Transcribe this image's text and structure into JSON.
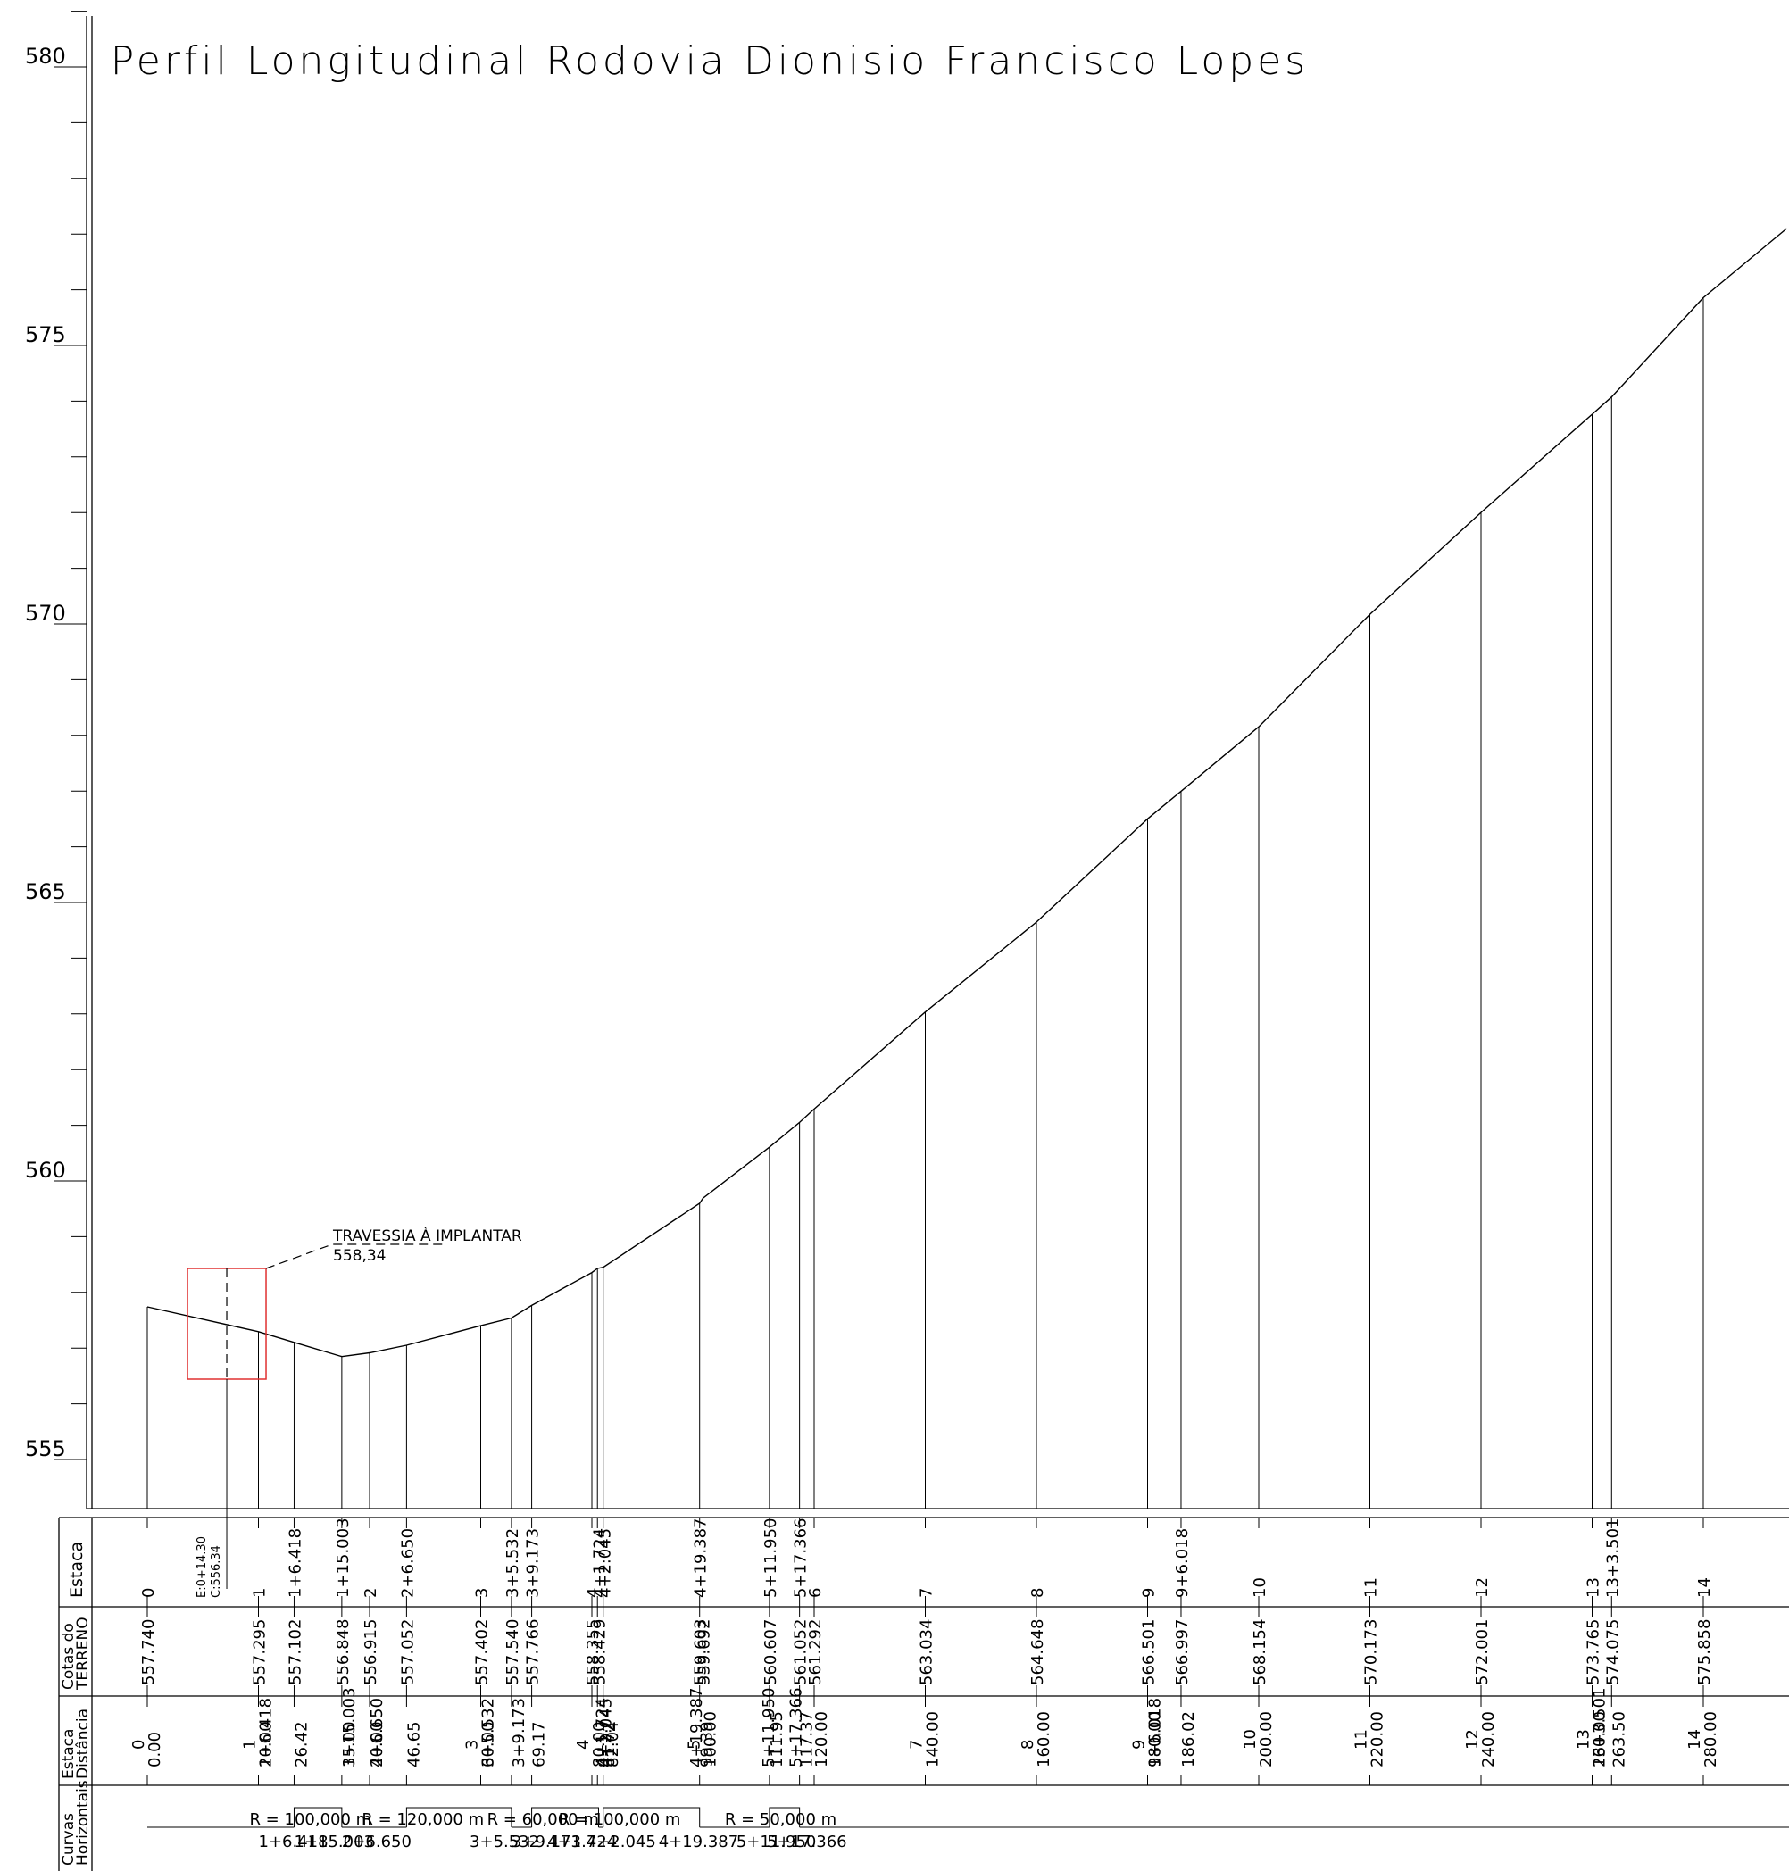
{
  "title": "Perfil  Longitudinal  Rodovia  Dionisio  Francisco  Lopes",
  "colors": {
    "ink": "#000000",
    "highlight": "#e03030",
    "background": "#ffffff"
  },
  "chart_data": {
    "type": "line",
    "ylim": [
      554.3,
      581.1
    ],
    "xlim": [
      -8,
      293
    ],
    "yticks": [
      "580",
      "575",
      "570",
      "565",
      "560",
      "555"
    ],
    "terrain": {
      "x": [
        0.0,
        20.0,
        26.42,
        35.0,
        40.0,
        46.65,
        60.0,
        65.53,
        69.17,
        80.0,
        81.0,
        82.04,
        99.39,
        100.0,
        111.95,
        117.37,
        120.0,
        140.0,
        160.0,
        180.0,
        186.02,
        200.0,
        220.0,
        240.0,
        260.0,
        263.5,
        280.0,
        295.0
      ],
      "y": [
        557.74,
        557.295,
        557.102,
        556.848,
        556.915,
        557.052,
        557.402,
        557.54,
        557.766,
        558.355,
        558.429,
        558.45,
        559.6,
        559.692,
        560.607,
        561.052,
        561.292,
        563.034,
        564.648,
        566.501,
        566.997,
        568.154,
        570.173,
        572.001,
        573.765,
        574.075,
        575.858,
        577.1
      ]
    },
    "annotation": {
      "label": "TRAVESSIA  À  IMPLANTAR",
      "value": "558,34",
      "stake": "E:0+14.30",
      "elevation": "C:556.34"
    }
  },
  "table": {
    "row_labels": {
      "estaca": "Estaca",
      "cotas": [
        "Cotas do",
        "TERRENO"
      ],
      "dist": [
        "Estaca",
        "Distância"
      ],
      "curvas": [
        "Curvas",
        "Horizontais"
      ]
    },
    "estaca_labels": [
      {
        "x": 0,
        "t": "0"
      },
      {
        "x": 20,
        "t": "1"
      },
      {
        "x": 26.42,
        "t": "1+6.418"
      },
      {
        "x": 35,
        "t": "1+15.003"
      },
      {
        "x": 40,
        "t": "2"
      },
      {
        "x": 46.65,
        "t": "2+6.650"
      },
      {
        "x": 60,
        "t": "3"
      },
      {
        "x": 65.53,
        "t": "3+5.532"
      },
      {
        "x": 69.17,
        "t": "3+9.173"
      },
      {
        "x": 80,
        "t": "4"
      },
      {
        "x": 81.2,
        "t": "4+1.724"
      },
      {
        "x": 82.2,
        "t": "4+2.045"
      },
      {
        "x": 99.39,
        "t": "4+19.387"
      },
      {
        "x": 111.95,
        "t": "5+11.950"
      },
      {
        "x": 117.37,
        "t": "5+17.366"
      },
      {
        "x": 120,
        "t": "6"
      },
      {
        "x": 140,
        "t": "7"
      },
      {
        "x": 160,
        "t": "8"
      },
      {
        "x": 180,
        "t": "9"
      },
      {
        "x": 186.02,
        "t": "9+6.018"
      },
      {
        "x": 200,
        "t": "10"
      },
      {
        "x": 220,
        "t": "11"
      },
      {
        "x": 240,
        "t": "12"
      },
      {
        "x": 260,
        "t": "13"
      },
      {
        "x": 263.5,
        "t": "13+3.501"
      },
      {
        "x": 280,
        "t": "14"
      }
    ],
    "cota_labels": [
      {
        "x": 0,
        "t": "557.740"
      },
      {
        "x": 20,
        "t": "557.295"
      },
      {
        "x": 26.42,
        "t": "557.102"
      },
      {
        "x": 35,
        "t": "556.848"
      },
      {
        "x": 40,
        "t": "556.915"
      },
      {
        "x": 46.65,
        "t": "557.052"
      },
      {
        "x": 60,
        "t": "557.402"
      },
      {
        "x": 65.53,
        "t": "557.540"
      },
      {
        "x": 69.17,
        "t": "557.766"
      },
      {
        "x": 80,
        "t": "558.355"
      },
      {
        "x": 81.2,
        "t": "558.429"
      },
      {
        "x": 99.39,
        "t": "559.603"
      },
      {
        "x": 100,
        "t": "559.692"
      },
      {
        "x": 111.95,
        "t": "560.607"
      },
      {
        "x": 117.37,
        "t": "561.052"
      },
      {
        "x": 120,
        "t": "561.292"
      },
      {
        "x": 140,
        "t": "563.034"
      },
      {
        "x": 160,
        "t": "564.648"
      },
      {
        "x": 180,
        "t": "566.501"
      },
      {
        "x": 186.02,
        "t": "566.997"
      },
      {
        "x": 200,
        "t": "568.154"
      },
      {
        "x": 220,
        "t": "570.173"
      },
      {
        "x": 240,
        "t": "572.001"
      },
      {
        "x": 260,
        "t": "573.765"
      },
      {
        "x": 263.5,
        "t": "574.075"
      },
      {
        "x": 280,
        "t": "575.858"
      }
    ],
    "dist_labels": [
      {
        "x": 0,
        "a": "0",
        "b": "0.00"
      },
      {
        "x": 20,
        "a": "1",
        "b": "20.00"
      },
      {
        "x": 20,
        "a": "",
        "b": "1+6.418"
      },
      {
        "x": 26.42,
        "a": "",
        "b": "26.42"
      },
      {
        "x": 35,
        "a": "",
        "b": "1+15.003"
      },
      {
        "x": 35,
        "a": "",
        "b": "35.00"
      },
      {
        "x": 40,
        "a": "",
        "b": "40.00"
      },
      {
        "x": 40,
        "a": "",
        "b": "2+6.650"
      },
      {
        "x": 46.65,
        "a": "",
        "b": "46.65"
      },
      {
        "x": 60,
        "a": "3",
        "b": "60.00"
      },
      {
        "x": 60,
        "a": "",
        "b": "3+5.532"
      },
      {
        "x": 65.53,
        "a": "",
        "b": "3+9.173"
      },
      {
        "x": 69.17,
        "a": "",
        "b": "69.17"
      },
      {
        "x": 80,
        "a": "4",
        "b": "80.00"
      },
      {
        "x": 80.6,
        "a": "",
        "b": "4+1.724"
      },
      {
        "x": 81.2,
        "a": "",
        "b": "4+2.045"
      },
      {
        "x": 81.8,
        "a": "",
        "b": "81.72"
      },
      {
        "x": 82.4,
        "a": "",
        "b": "82.04"
      },
      {
        "x": 97.5,
        "a": "",
        "b": "4+19.387"
      },
      {
        "x": 99.39,
        "a": "",
        "b": "99.39"
      },
      {
        "x": 100,
        "a": "5",
        "b": "100.00"
      },
      {
        "x": 110.5,
        "a": "",
        "b": "5+11.950"
      },
      {
        "x": 111.95,
        "a": "",
        "b": "111.95"
      },
      {
        "x": 115.4,
        "a": "",
        "b": "5+17.366"
      },
      {
        "x": 117.37,
        "a": "",
        "b": "117.37"
      },
      {
        "x": 120,
        "a": "",
        "b": "120.00"
      },
      {
        "x": 140,
        "a": "7",
        "b": "140.00"
      },
      {
        "x": 160,
        "a": "8",
        "b": "160.00"
      },
      {
        "x": 180,
        "a": "9",
        "b": "180.00"
      },
      {
        "x": 180,
        "a": "",
        "b": "9+6.018"
      },
      {
        "x": 186.02,
        "a": "",
        "b": "186.02"
      },
      {
        "x": 200,
        "a": "10",
        "b": "200.00"
      },
      {
        "x": 220,
        "a": "11",
        "b": "220.00"
      },
      {
        "x": 240,
        "a": "12",
        "b": "240.00"
      },
      {
        "x": 260,
        "a": "13",
        "b": "260.00"
      },
      {
        "x": 260,
        "a": "",
        "b": "13+3.501"
      },
      {
        "x": 263.5,
        "a": "",
        "b": "263.50"
      },
      {
        "x": 280,
        "a": "14",
        "b": "280.00"
      }
    ],
    "curves": [
      {
        "x1": 26.42,
        "x2": 35.0,
        "label": "R  =  100,000  m"
      },
      {
        "x1": 46.65,
        "x2": 65.53,
        "label": "R  =  120,000  m"
      },
      {
        "x1": 69.17,
        "x2": 81.2,
        "label": "R  =  60,000  m"
      },
      {
        "x1": 82.04,
        "x2": 99.39,
        "label": "R  =  100,000  m"
      },
      {
        "x1": 111.95,
        "x2": 117.37,
        "label": "R  =  50,000  m"
      }
    ],
    "curve_stakes": [
      {
        "x": 20.0,
        "t": "1+6.418"
      },
      {
        "x": 26.42,
        "t": "1+15.003"
      },
      {
        "x": 35.0,
        "t": "2+6.650"
      },
      {
        "x": 58.0,
        "t": "3+5.532"
      },
      {
        "x": 65.53,
        "t": "3+9.173"
      },
      {
        "x": 72.0,
        "t": "4+1.724"
      },
      {
        "x": 79.0,
        "t": "4+2.045"
      },
      {
        "x": 92.0,
        "t": "4+19.387"
      },
      {
        "x": 106.0,
        "t": "5+11.950"
      },
      {
        "x": 111.5,
        "t": "5+17.366"
      }
    ]
  }
}
